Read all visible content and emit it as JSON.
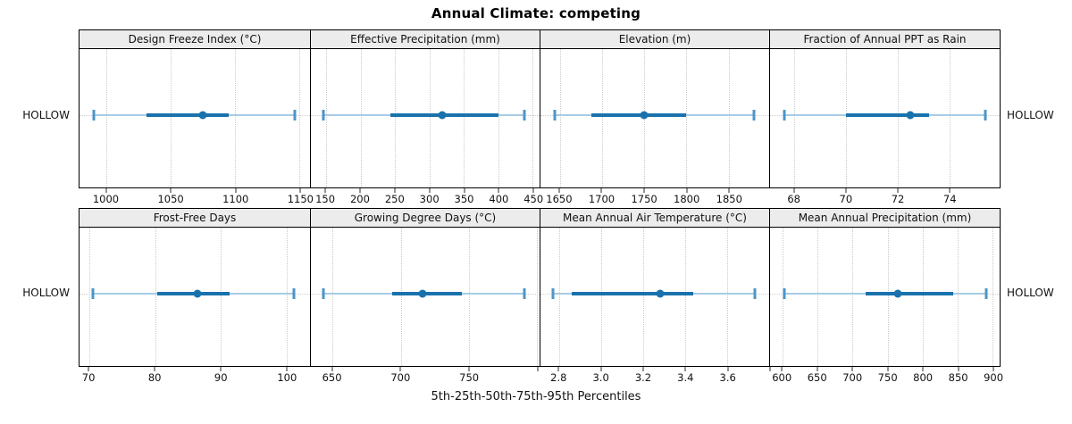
{
  "figure": {
    "title": "Annual Climate: competing",
    "caption": "5th-25th-50th-75th-95th Percentiles",
    "row_label_left": "HOLLOW",
    "row_label_right": "HOLLOW"
  },
  "colors": {
    "main_blue": "#1a72ad",
    "cap_blue": "#4d96c6",
    "light_blue": "#a7cbe5",
    "grid": "#c9c9c9",
    "refline": "#cfcfcf",
    "strip_bg": "#ececec",
    "border": "#000000"
  },
  "chart_data": {
    "type": "dotplot",
    "subtype": "percentile-whiskers-5-25-50-75-95",
    "title": "Annual Climate: competing",
    "xlabel": "5th-25th-50th-75th-95th Percentiles",
    "ylabels": [
      "HOLLOW"
    ],
    "grid": "dotted-vertical-at-ticks",
    "percentile_names": [
      "5th",
      "25th",
      "50th",
      "75th",
      "95th"
    ],
    "panels": [
      {
        "title": "Design Freeze Index (°C)",
        "xmin": 979,
        "xmax": 1158,
        "ticks": [
          1000,
          1050,
          1100,
          1150
        ],
        "tick_labels": [
          "1000",
          "1050",
          "1100",
          "1150"
        ],
        "p5": 990,
        "p25": 1031,
        "p50": 1075,
        "p75": 1095,
        "p95": 1146
      },
      {
        "title": "Effective Precipitation (mm)",
        "xmin": 128,
        "xmax": 460,
        "ticks": [
          150,
          200,
          250,
          300,
          350,
          400,
          450
        ],
        "tick_labels": [
          "150",
          "200",
          "250",
          "300",
          "350",
          "400",
          "450"
        ],
        "p5": 146,
        "p25": 243,
        "p50": 318,
        "p75": 400,
        "p95": 438
      },
      {
        "title": "Elevation (m)",
        "xmin": 1627,
        "xmax": 1898,
        "ticks": [
          1650,
          1700,
          1750,
          1800,
          1850
        ],
        "tick_labels": [
          "1650",
          "1700",
          "1750",
          "1800",
          "1850"
        ],
        "p5": 1644,
        "p25": 1687,
        "p50": 1750,
        "p75": 1800,
        "p95": 1880
      },
      {
        "title": "Fraction of Annual PPT as Rain",
        "xmin": 67.05,
        "xmax": 75.95,
        "ticks": [
          68,
          70,
          72,
          74
        ],
        "tick_labels": [
          "68",
          "70",
          "72",
          "74"
        ],
        "p5": 67.6,
        "p25": 70.0,
        "p50": 72.5,
        "p75": 73.2,
        "p95": 75.4
      },
      {
        "title": "Frost-Free Days",
        "xmin": 68.5,
        "xmax": 103.6,
        "ticks": [
          70,
          80,
          90,
          100
        ],
        "tick_labels": [
          "70",
          "80",
          "90",
          "100"
        ],
        "p5": 70.5,
        "p25": 80.3,
        "p50": 86.4,
        "p75": 91.3,
        "p95": 101.2
      },
      {
        "title": "Growing Degree Days (°C)",
        "xmin": 634,
        "xmax": 802,
        "ticks": [
          650,
          700,
          750,
          800
        ],
        "tick_labels": [
          "650",
          "700",
          "750",
          ""
        ],
        "p5": 643,
        "p25": 694,
        "p50": 716,
        "p75": 745,
        "p95": 791
      },
      {
        "title": "Mean Annual Air Temperature (°C)",
        "xmin": 2.71,
        "xmax": 3.8,
        "ticks": [
          2.8,
          3.0,
          3.2,
          3.4,
          3.6,
          3.8
        ],
        "tick_labels": [
          "2.8",
          "3.0",
          "3.2",
          "3.4",
          "3.6",
          ""
        ],
        "p5": 2.77,
        "p25": 2.86,
        "p50": 3.28,
        "p75": 3.44,
        "p95": 3.73
      },
      {
        "title": "Mean Annual Precipitation (mm)",
        "xmin": 582,
        "xmax": 910,
        "ticks": [
          600,
          650,
          700,
          750,
          800,
          850,
          900
        ],
        "tick_labels": [
          "600",
          "650",
          "700",
          "750",
          "800",
          "850",
          "900"
        ],
        "p5": 603,
        "p25": 719,
        "p50": 765,
        "p75": 844,
        "p95": 891
      }
    ]
  }
}
